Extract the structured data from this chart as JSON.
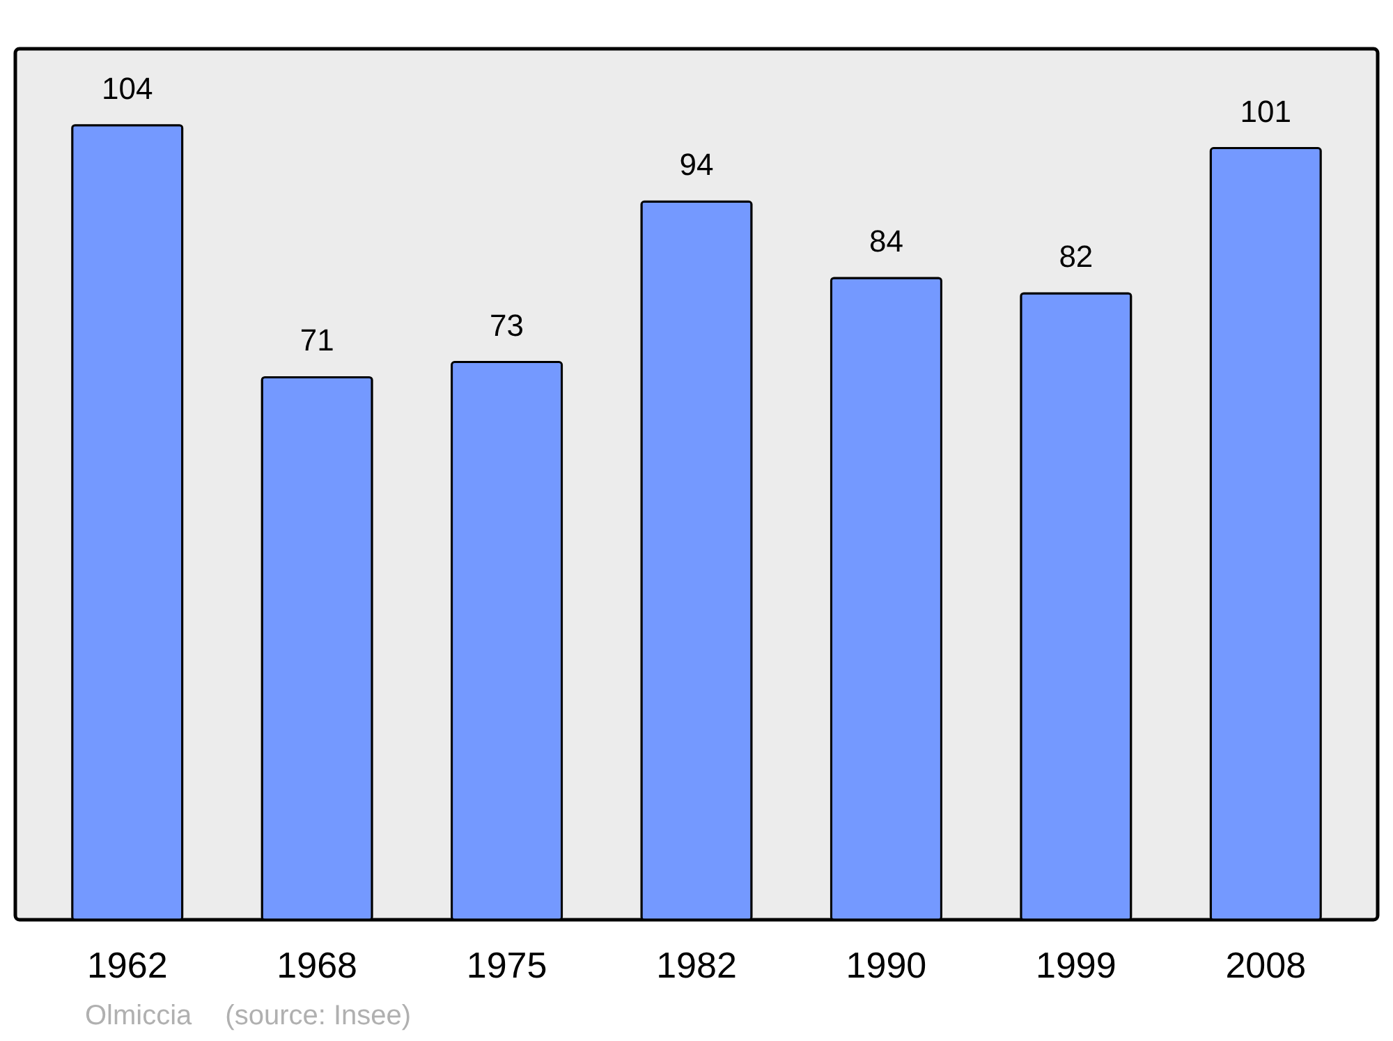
{
  "chart_data": {
    "type": "bar",
    "categories": [
      "1962",
      "1968",
      "1975",
      "1982",
      "1990",
      "1999",
      "2008"
    ],
    "values": [
      104,
      71,
      73,
      94,
      84,
      82,
      101
    ],
    "color": "#7499ff",
    "ylim": [
      0,
      114
    ],
    "data_labels": true,
    "annotations": [
      "Olmiccia",
      "(source: Insee)"
    ]
  }
}
